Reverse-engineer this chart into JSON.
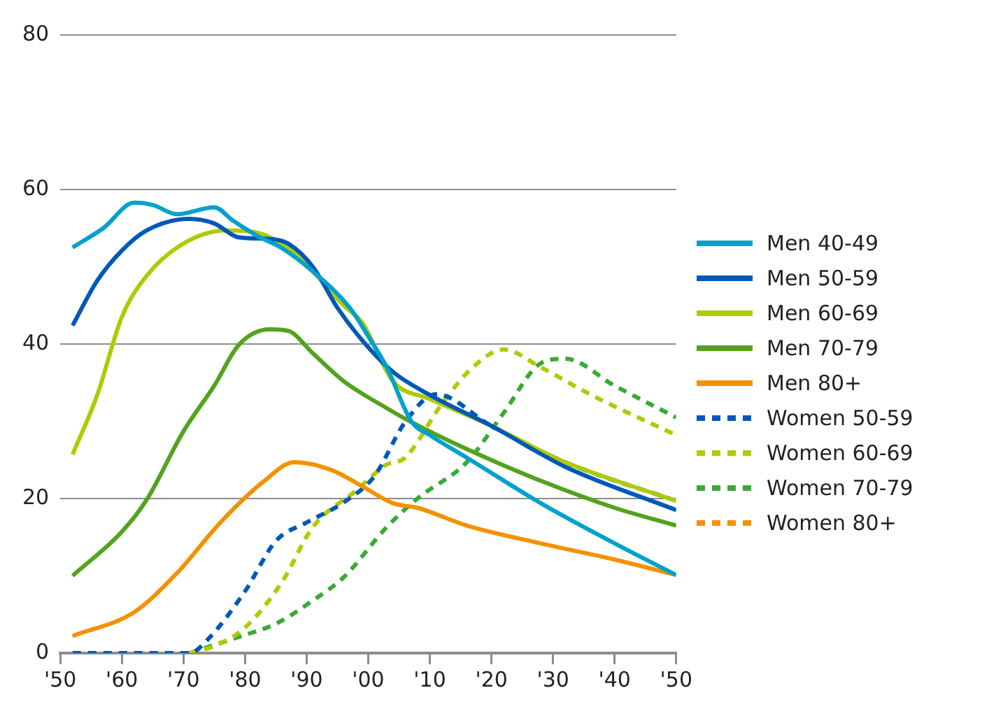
{
  "chart_data": {
    "type": "line",
    "xlim": [
      1950,
      2050
    ],
    "ylim": [
      0,
      80
    ],
    "xticks": [
      {
        "value": 1950,
        "label": "'50"
      },
      {
        "value": 1960,
        "label": "'60"
      },
      {
        "value": 1970,
        "label": "'70"
      },
      {
        "value": 1980,
        "label": "'80"
      },
      {
        "value": 1990,
        "label": "'90"
      },
      {
        "value": 2000,
        "label": "'00"
      },
      {
        "value": 2010,
        "label": "'10"
      },
      {
        "value": 2020,
        "label": "'20"
      },
      {
        "value": 2030,
        "label": "'30"
      },
      {
        "value": 2040,
        "label": "'40"
      },
      {
        "value": 2050,
        "label": "'50"
      }
    ],
    "yticks": [
      0,
      20,
      40,
      60,
      80
    ],
    "grid": "y",
    "legend": "right",
    "marker": "none",
    "series": [
      {
        "name": "Men 40-49",
        "color": "#00a1cd",
        "line_style": "solid",
        "x": [
          1952,
          1957,
          1962,
          1965,
          1969,
          1975,
          1978,
          1982,
          1986,
          1991,
          1997,
          2000,
          2003,
          2007,
          2010,
          2016,
          2028,
          2040,
          2050
        ],
        "values": [
          52.5,
          55,
          58.3,
          58,
          56.8,
          57.7,
          56,
          54,
          52.4,
          49.4,
          44.7,
          41,
          37,
          30,
          28.2,
          25.3,
          19.4,
          14.2,
          10.1
        ]
      },
      {
        "name": "Men 50-59",
        "color": "#0058b8",
        "line_style": "solid",
        "x": [
          1952,
          1956,
          1960,
          1964,
          1971,
          1975,
          1979,
          1984,
          1987,
          1991,
          1995,
          1999,
          2004,
          2010,
          2020,
          2032,
          2050
        ],
        "values": [
          42.4,
          48.2,
          52.1,
          54.7,
          56.2,
          55.6,
          53.8,
          53.6,
          53,
          50,
          44.7,
          40.5,
          36.4,
          33.4,
          29.4,
          24.1,
          18.5
        ]
      },
      {
        "name": "Men 60-69",
        "color": "#afcb05",
        "line_style": "solid",
        "x": [
          1952,
          1956,
          1960,
          1964,
          1970,
          1977,
          1982,
          1987,
          1991,
          1996,
          1999,
          2004,
          2010,
          2020,
          2032,
          2050
        ],
        "values": [
          25.7,
          33.4,
          43.5,
          48.8,
          53,
          54.7,
          54.4,
          52.4,
          49.4,
          45,
          42.8,
          35.2,
          32.9,
          29.4,
          24.7,
          19.7
        ]
      },
      {
        "name": "Men 70-79",
        "color": "#53a31d",
        "line_style": "solid",
        "x": [
          1952,
          1960,
          1964,
          1970,
          1975,
          1979,
          1984,
          1987,
          1991,
          1996,
          2003,
          2007,
          2016,
          2028,
          2040,
          2050
        ],
        "values": [
          10,
          15.7,
          19.8,
          28.7,
          34.6,
          39.9,
          41.9,
          41.7,
          38.8,
          35.2,
          31.7,
          29.9,
          26.4,
          22.3,
          18.8,
          16.5
        ]
      },
      {
        "name": "Men 80+",
        "color": "#f39200",
        "line_style": "solid",
        "x": [
          1952,
          1962,
          1969,
          1976,
          1983,
          1988,
          1994,
          1999,
          2004,
          2008,
          2016,
          2028,
          2040,
          2050
        ],
        "values": [
          2.2,
          5.3,
          10.4,
          16.9,
          22.2,
          24.7,
          23.7,
          21.6,
          19.4,
          18.8,
          16.5,
          14.2,
          12.1,
          10.1
        ]
      },
      {
        "name": "Women 50-59",
        "color": "#0058b8",
        "line_style": "dashed",
        "x": [
          1952,
          1960,
          1971,
          1974,
          1980,
          1985,
          1990,
          1996,
          2001,
          2006,
          2011,
          2020,
          2032,
          2050
        ],
        "values": [
          0,
          0,
          0,
          1.8,
          8,
          14.5,
          16.9,
          19.5,
          22.9,
          29.9,
          33.5,
          29.4,
          24.7,
          19.7
        ]
      },
      {
        "name": "Women 60-69",
        "color": "#afcb05",
        "line_style": "dashed",
        "x": [
          1971,
          1975,
          1980,
          1986,
          1991,
          1998,
          2003,
          2006,
          2012,
          2017,
          2022,
          2028,
          2036,
          2050
        ],
        "values": [
          0,
          0.9,
          3.3,
          9.2,
          16.3,
          21,
          24.4,
          25.3,
          32.3,
          37,
          39.3,
          37,
          33.5,
          28.2
        ]
      },
      {
        "name": "Women 70-79",
        "color": "#3aaa35",
        "line_style": "dashed",
        "x": [
          1971,
          1979,
          1985,
          1991,
          1996,
          2003,
          2008,
          2016,
          2022,
          2028,
          2032,
          2040,
          2050
        ],
        "values": [
          0,
          2.1,
          3.8,
          6.8,
          9.8,
          16.3,
          20,
          24.7,
          31.1,
          37.5,
          38.1,
          34.6,
          30.5
        ]
      },
      {
        "name": "Women 80+",
        "color": "#f39200",
        "line_style": "dashed"
      }
    ]
  }
}
